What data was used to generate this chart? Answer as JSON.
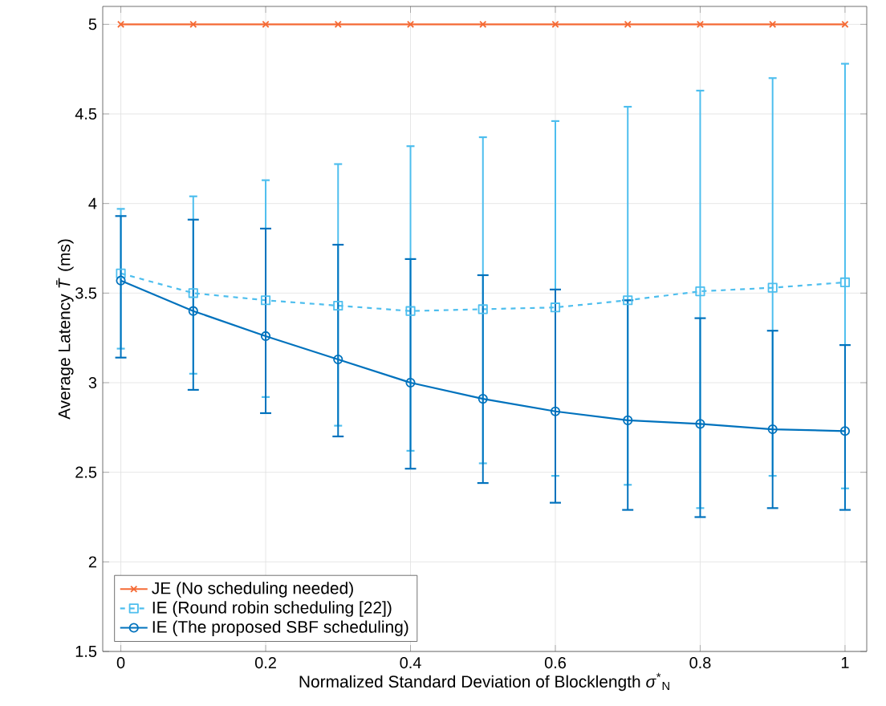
{
  "chart_data": {
    "type": "line",
    "xlabel": "Normalized Standard Deviation of Blocklength *σ*$^{*}$$_{N}$",
    "ylabel": "Average Latency *T̄* (ms)",
    "x": [
      0,
      0.1,
      0.2,
      0.3,
      0.4,
      0.5,
      0.6,
      0.7,
      0.8,
      0.9,
      1.0
    ],
    "series": [
      {
        "name": "JE (No scheduling needed)",
        "color": "#f56a35",
        "marker": "cross",
        "line_style": "solid",
        "values": [
          5,
          5,
          5,
          5,
          5,
          5,
          5,
          5,
          5,
          5,
          5
        ]
      },
      {
        "name": "IE (Round robin scheduling [22])",
        "color": "#4dbeee",
        "marker": "square",
        "line_style": "dashed",
        "values": [
          3.61,
          3.5,
          3.46,
          3.43,
          3.4,
          3.41,
          3.42,
          3.46,
          3.51,
          3.53,
          3.56
        ],
        "errors": [
          [
            3.19,
            3.97
          ],
          [
            3.05,
            4.04
          ],
          [
            2.92,
            4.13
          ],
          [
            2.76,
            4.22
          ],
          [
            2.62,
            4.32
          ],
          [
            2.55,
            4.37
          ],
          [
            2.48,
            4.46
          ],
          [
            2.43,
            4.54
          ],
          [
            2.3,
            4.63
          ],
          [
            2.48,
            4.7
          ],
          [
            2.41,
            4.78
          ]
        ]
      },
      {
        "name": "IE (The proposed SBF scheduling)",
        "color": "#0072bd",
        "marker": "circle",
        "line_style": "solid",
        "values": [
          3.57,
          3.4,
          3.26,
          3.13,
          3.0,
          2.91,
          2.84,
          2.79,
          2.77,
          2.74,
          2.73
        ],
        "errors": [
          [
            3.14,
            3.93
          ],
          [
            2.96,
            3.91
          ],
          [
            2.83,
            3.86
          ],
          [
            2.7,
            3.77
          ],
          [
            2.52,
            3.69
          ],
          [
            2.44,
            3.6
          ],
          [
            2.33,
            3.52
          ],
          [
            2.29,
            3.46
          ],
          [
            2.25,
            3.36
          ],
          [
            2.3,
            3.29
          ],
          [
            2.29,
            3.21
          ]
        ]
      }
    ],
    "xlim": [
      -0.025,
      1.03
    ],
    "ylim": [
      1.5,
      5.1
    ],
    "xticks": [
      0,
      0.2,
      0.4,
      0.6,
      0.8,
      1
    ],
    "yticks": [
      1.5,
      2,
      2.5,
      3,
      3.5,
      4,
      4.5,
      5
    ],
    "grid": true,
    "legend": "bottom left"
  }
}
